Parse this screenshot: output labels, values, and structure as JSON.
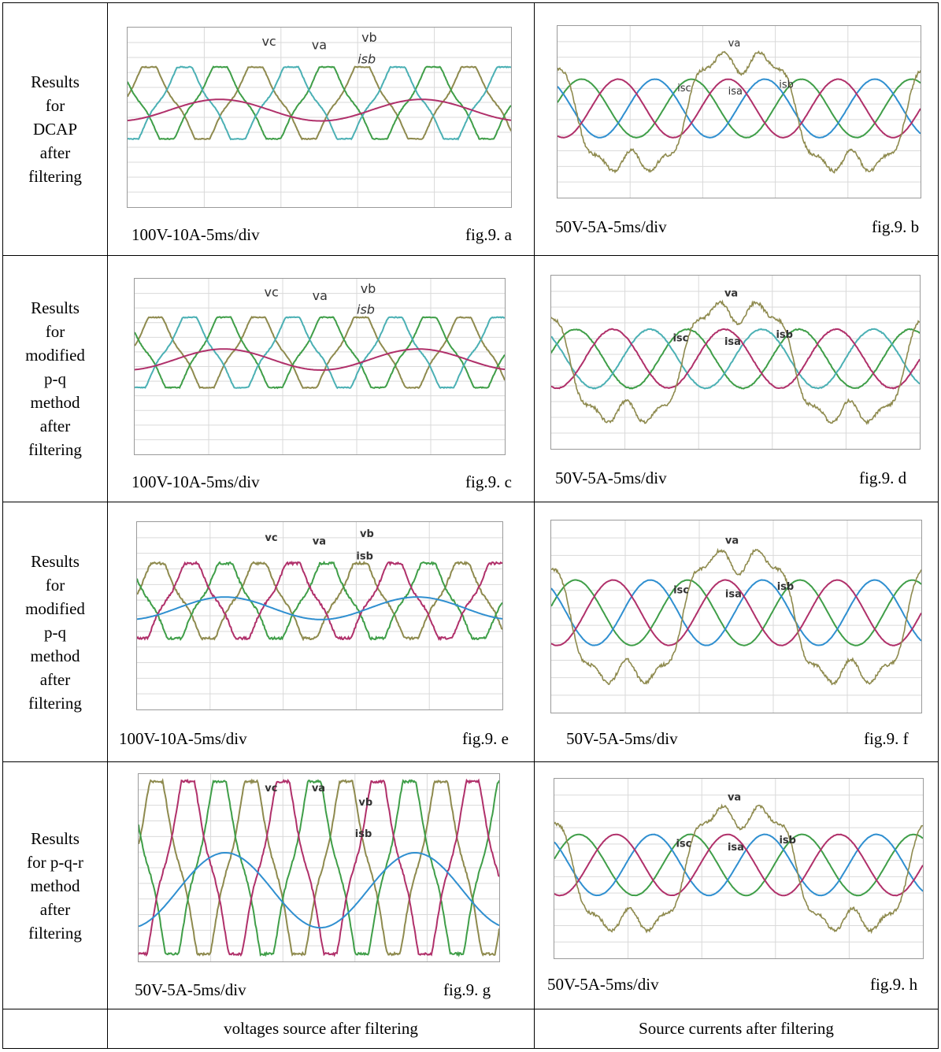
{
  "rows": [
    {
      "label": [
        "Results",
        "for",
        "DCAP",
        "after",
        "filtering"
      ],
      "left": {
        "scale": "100V-10A-5ms/div",
        "tag": "fig.9. a"
      },
      "right": {
        "scale": "50V-5A-5ms/div",
        "tag": "fig.9. b"
      }
    },
    {
      "label": [
        "Results",
        "for",
        "modified",
        "p-q",
        "method",
        "after",
        "filtering"
      ],
      "left": {
        "scale": "100V-10A-5ms/div",
        "tag": "fig.9. c"
      },
      "right": {
        "scale": "50V-5A-5ms/div",
        "tag": "fig.9. d"
      }
    },
    {
      "label": [
        "Results",
        "for",
        "modified",
        "p-q",
        "method",
        "after",
        "filtering"
      ],
      "left": {
        "scale": "100V-10A-5ms/div",
        "tag": "fig.9. e"
      },
      "right": {
        "scale": "50V-5A-5ms/div",
        "tag": "fig.9. f"
      }
    },
    {
      "label": [
        "Results",
        "for p-q-r",
        "method",
        "after",
        "filtering"
      ],
      "left": {
        "scale": "50V-5A-5ms/div",
        "tag": "fig.9. g"
      },
      "right": {
        "scale": "50V-5A-5ms/div",
        "tag": "fig.9. h"
      }
    }
  ],
  "footer": {
    "col1": "",
    "col2": "voltages source after filtering",
    "col3": "Source currents after filtering"
  },
  "trace_labels": {
    "voltage": {
      "vc": "vc",
      "va": "va",
      "vb": "vb",
      "isb": "isb"
    },
    "current": {
      "va": "va",
      "isc": "isc",
      "isa": "isa",
      "isb": "isb"
    }
  },
  "colors": {
    "olive": "#8e8a4e",
    "green": "#3f9e48",
    "teal": "#4bb0b4",
    "magenta": "#b0306a",
    "blue": "#2f8fd0",
    "grid": "#d9d9d9"
  }
}
